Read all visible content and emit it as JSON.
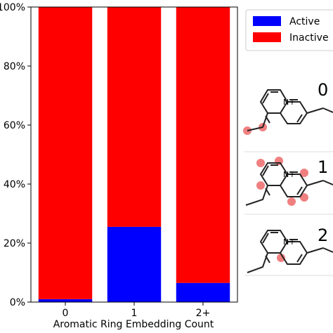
{
  "chart_data": {
    "type": "bar",
    "stacked": true,
    "percent": true,
    "categories": [
      "0",
      "1",
      "2+"
    ],
    "series": [
      {
        "name": "Active",
        "color": "#0000ff",
        "values": [
          1,
          25.5,
          6.5
        ]
      },
      {
        "name": "Inactive",
        "color": "#ff0000",
        "values": [
          99,
          74.5,
          93.5
        ]
      }
    ],
    "xlabel": "Aromatic Ring Embedding Count",
    "ylabel": "",
    "ylim": [
      0,
      100
    ],
    "yticks": [
      0,
      20,
      40,
      60,
      80,
      100
    ],
    "ytick_labels": [
      "0%",
      "20%",
      "40%",
      "60%",
      "80%",
      "100%"
    ],
    "legend": {
      "placement": "top-right",
      "entries": [
        "Active",
        "Inactive"
      ]
    }
  },
  "panels": [
    {
      "label": "0",
      "atom": "N+",
      "highlight_color": "#f08080"
    },
    {
      "label": "1",
      "atom": "N+",
      "highlight_color": "#f08080"
    },
    {
      "label": "2",
      "atom": "N+",
      "highlight_color": "#f08080"
    }
  ]
}
